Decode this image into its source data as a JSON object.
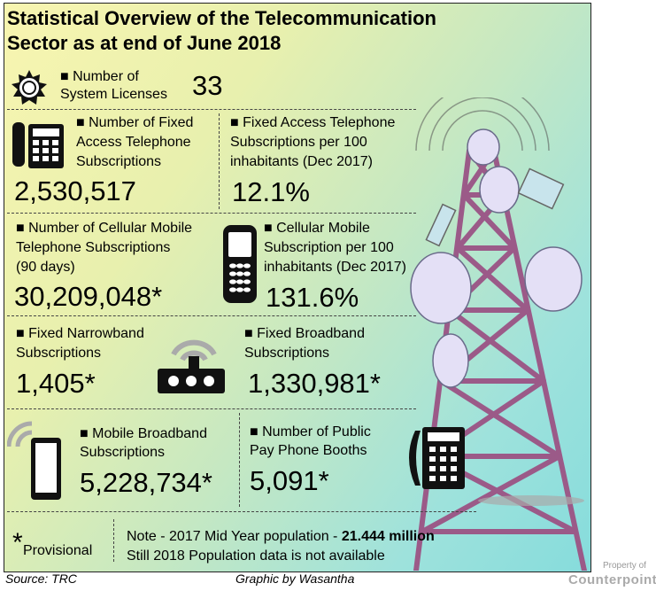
{
  "title": {
    "line1": "Statistical Overview of the Telecommunication",
    "line2": "Sector as at end of June 2018"
  },
  "licenses": {
    "label_line1": "■ Number of",
    "label_line2": "System Licenses",
    "value": "33"
  },
  "fixed_subs": {
    "label_line1": "■ Number of Fixed",
    "label_line2": "Access Telephone",
    "label_line3": "Subscriptions",
    "value": "2,530,517"
  },
  "fixed_per100": {
    "label_line1": "■ Fixed Access Telephone",
    "label_line2": "Subscriptions per 100",
    "label_line3": "inhabitants (Dec 2017)",
    "value": "12.1%"
  },
  "cellular_subs": {
    "label_line1": "■ Number of Cellular Mobile",
    "label_line2": "Telephone  Subscriptions",
    "label_line3": "(90 days)",
    "value": "30,209,048*"
  },
  "cellular_per100": {
    "label_line1": "■ Cellular Mobile",
    "label_line2": "Subscription per 100",
    "label_line3": "inhabitants (Dec 2017)",
    "value": "131.6%"
  },
  "narrowband": {
    "label_line1": "■  Fixed Narrowband",
    "label_line2": "Subscriptions",
    "value": "1,405*"
  },
  "fixed_broadband": {
    "label_line1": "■  Fixed Broadband",
    "label_line2": "Subscriptions",
    "value": "1,330,981*"
  },
  "mobile_broadband": {
    "label_line1": "■ Mobile Broadband",
    "label_line2": "Subscriptions",
    "value": "5,228,734*"
  },
  "payphones": {
    "label_line1": "■ Number of Public",
    "label_line2": "Pay Phone Booths",
    "value": "5,091*"
  },
  "provisional": {
    "star": "*",
    "label": "Provisional"
  },
  "note": {
    "line1_prefix": "Note - 2017 Mid Year population - ",
    "line1_value": "21.444 million",
    "line2": "Still 2018 Population data is not available"
  },
  "footer": {
    "source": "Source: TRC",
    "credit": "Graphic by Wasantha"
  },
  "watermark": {
    "line1": "Property of",
    "line2": "Counterpoint"
  },
  "icons": [
    "sun-icon",
    "desk-phone-icon",
    "mobile-phone-icon",
    "router-icon",
    "mobile-signal-icon",
    "payphone-icon",
    "telecom-tower-illustration"
  ],
  "colors": {
    "background_start": "#f8f5b0",
    "background_end": "#86dcdc",
    "tower": "#9b5a88",
    "dish": "#d8d4f0"
  }
}
